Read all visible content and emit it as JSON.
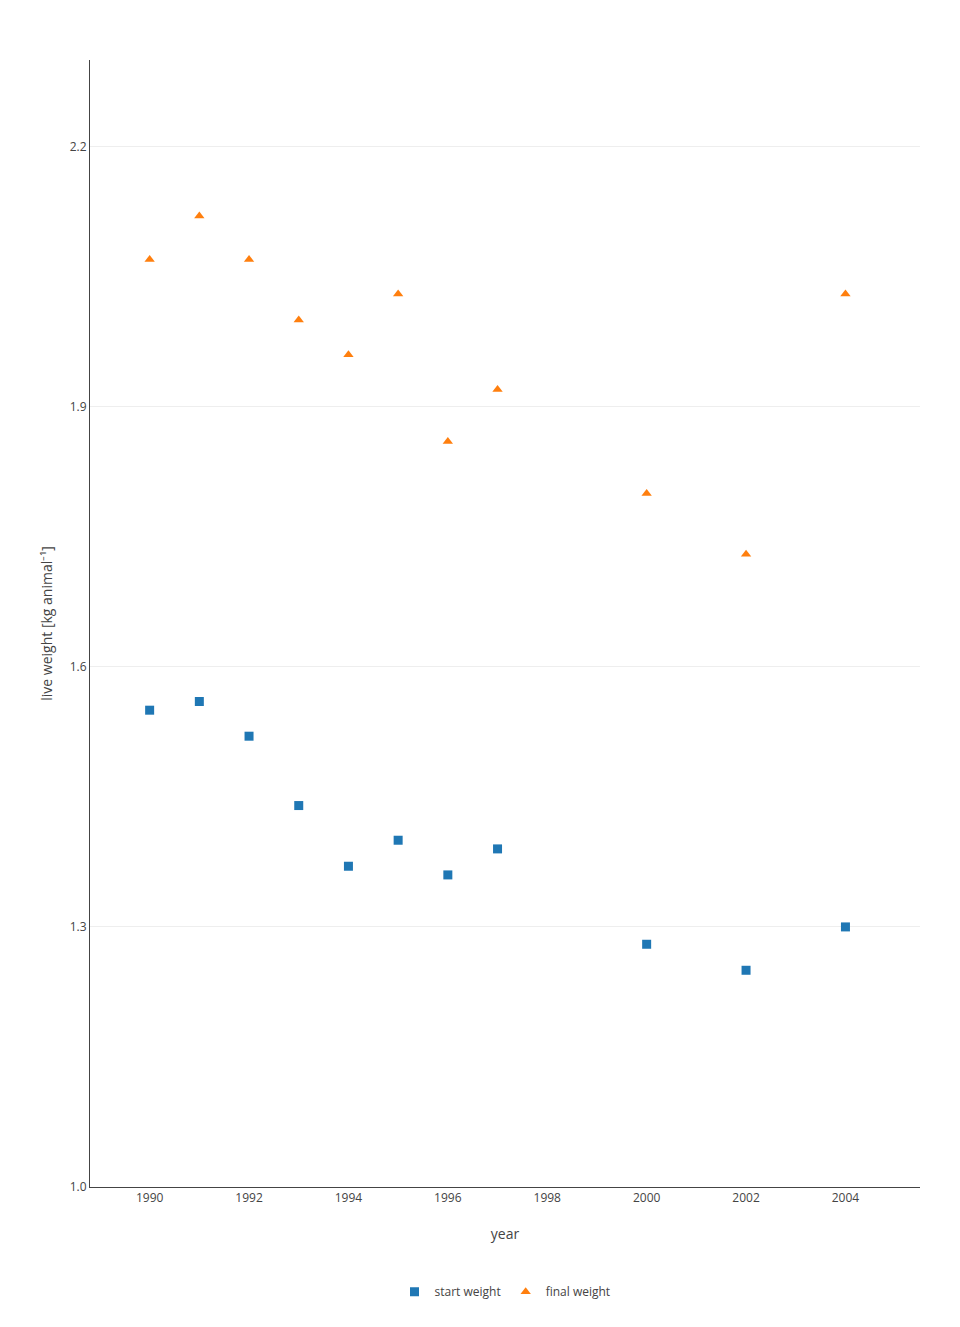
{
  "chart_data": {
    "type": "scatter",
    "x_label": "year",
    "y_label": "live weight [kg animal⁻¹]",
    "series": [
      {
        "name": "start weight",
        "marker": "square",
        "x": [
          1990,
          1991,
          1992,
          1993,
          1994,
          1995,
          1996,
          1997,
          2000,
          2002,
          2004
        ],
        "values": [
          1.55,
          1.56,
          1.52,
          1.44,
          1.37,
          1.4,
          1.36,
          1.39,
          1.28,
          1.25,
          1.3
        ]
      },
      {
        "name": "final weight",
        "marker": "triangle-up",
        "x": [
          1990,
          1991,
          1992,
          1993,
          1994,
          1995,
          1996,
          1997,
          2000,
          2002,
          2004
        ],
        "values": [
          2.07,
          2.12,
          2.07,
          2.0,
          1.96,
          2.03,
          1.86,
          1.92,
          1.8,
          1.73,
          2.03
        ]
      }
    ],
    "xlim": [
      1988.8,
      2005.5
    ],
    "xticks": [
      1990,
      1992,
      1994,
      1996,
      1998,
      2000,
      2002,
      2004
    ],
    "ylim": [
      1.0,
      2.3
    ],
    "yticks": [
      {
        "value": 1.0,
        "label": "1.0"
      },
      1.3,
      1.6,
      1.9,
      2.2
    ],
    "grid": true,
    "legend": "bottom"
  }
}
